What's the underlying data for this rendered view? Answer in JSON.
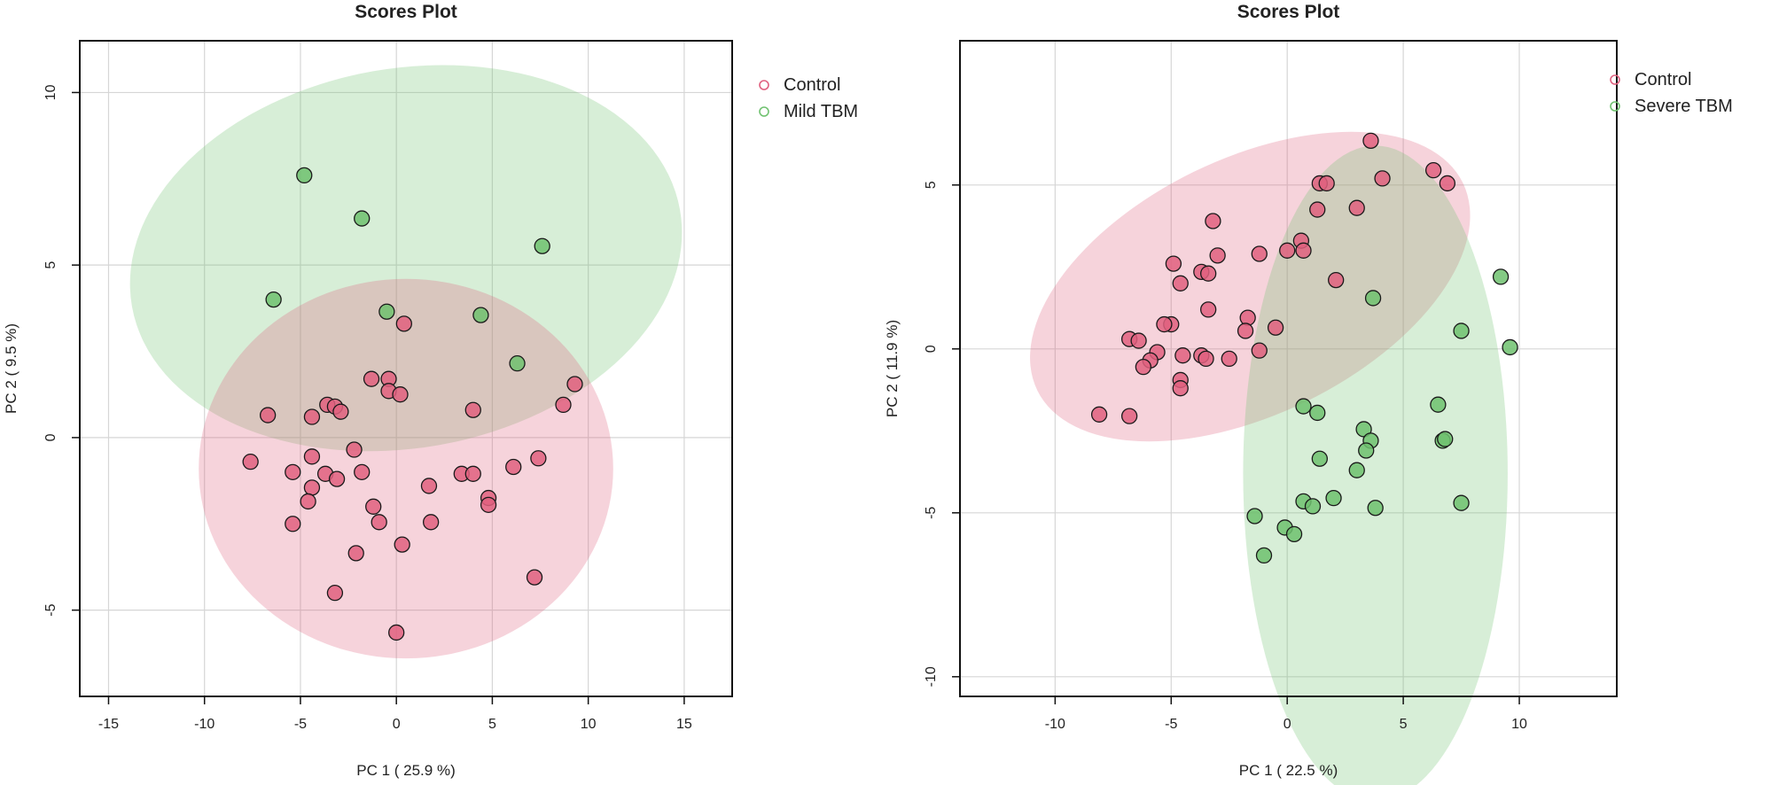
{
  "chart_data": [
    {
      "type": "scatter",
      "title": "Scores Plot",
      "xlabel": "PC 1 ( 25.9 %)",
      "ylabel": "PC 2 ( 9.5 %)",
      "xlim": [
        -16.5,
        17.5
      ],
      "ylim": [
        -7.5,
        11.5
      ],
      "xticks": [
        -15,
        -10,
        -5,
        0,
        5,
        10,
        15
      ],
      "yticks": [
        -5,
        0,
        5,
        10
      ],
      "grid": true,
      "legend_position": "right",
      "colors": {
        "Control": "#e0607f",
        "Mild TBM": "#6fc16f"
      },
      "legend": [
        {
          "name": "Control",
          "color": "#e0607f"
        },
        {
          "name": "Mild TBM",
          "color": "#6fc16f"
        }
      ],
      "ellipses": [
        {
          "group": "Mild TBM",
          "cx": 0.5,
          "cy": 5.2,
          "rx": 14.5,
          "ry": 5.5,
          "angle_deg": -10
        },
        {
          "group": "Control",
          "cx": 0.5,
          "cy": -0.9,
          "rx": 10.8,
          "ry": 5.5,
          "angle_deg": 0
        }
      ],
      "series": [
        {
          "name": "Mild TBM",
          "points": [
            [
              -4.8,
              7.6
            ],
            [
              -1.8,
              6.35
            ],
            [
              7.6,
              5.55
            ],
            [
              -6.4,
              4.0
            ],
            [
              -0.5,
              3.65
            ],
            [
              4.4,
              3.55
            ],
            [
              6.3,
              2.15
            ]
          ]
        },
        {
          "name": "Control",
          "points": [
            [
              0.4,
              3.3
            ],
            [
              9.3,
              1.55
            ],
            [
              -1.3,
              1.7
            ],
            [
              -0.4,
              1.7
            ],
            [
              -0.4,
              1.35
            ],
            [
              0.2,
              1.25
            ],
            [
              8.7,
              0.95
            ],
            [
              -3.6,
              0.95
            ],
            [
              -3.2,
              0.9
            ],
            [
              -2.9,
              0.75
            ],
            [
              4.0,
              0.8
            ],
            [
              -6.7,
              0.65
            ],
            [
              -4.4,
              0.6
            ],
            [
              -2.2,
              -0.35
            ],
            [
              -7.6,
              -0.7
            ],
            [
              -4.4,
              -0.55
            ],
            [
              7.4,
              -0.6
            ],
            [
              6.1,
              -0.85
            ],
            [
              -5.4,
              -1.0
            ],
            [
              -3.7,
              -1.05
            ],
            [
              -1.8,
              -1.0
            ],
            [
              3.4,
              -1.05
            ],
            [
              4.0,
              -1.05
            ],
            [
              -3.1,
              -1.2
            ],
            [
              1.7,
              -1.4
            ],
            [
              -4.4,
              -1.45
            ],
            [
              4.8,
              -1.75
            ],
            [
              -4.6,
              -1.85
            ],
            [
              4.8,
              -1.95
            ],
            [
              -1.2,
              -2.0
            ],
            [
              -0.9,
              -2.45
            ],
            [
              -5.4,
              -2.5
            ],
            [
              1.8,
              -2.45
            ],
            [
              0.3,
              -3.1
            ],
            [
              -2.1,
              -3.35
            ],
            [
              7.2,
              -4.05
            ],
            [
              -3.2,
              -4.5
            ],
            [
              0.0,
              -5.65
            ]
          ]
        }
      ]
    },
    {
      "type": "scatter",
      "title": "Scores Plot",
      "xlabel": "PC 1 ( 22.5 %)",
      "ylabel": "PC 2 ( 11.9 %)",
      "xlim": [
        -14.1,
        14.2
      ],
      "ylim": [
        -10.6,
        9.4
      ],
      "xticks": [
        -10,
        -5,
        0,
        5,
        10
      ],
      "yticks": [
        -10,
        -5,
        0,
        5
      ],
      "grid": true,
      "legend_position": "right",
      "colors": {
        "Control": "#e0607f",
        "Severe TBM": "#6fc16f"
      },
      "legend": [
        {
          "name": "Control",
          "color": "#e0607f"
        },
        {
          "name": "Severe TBM",
          "color": "#6fc16f"
        }
      ],
      "ellipses": [
        {
          "group": "Control",
          "cx": -1.6,
          "cy": 1.9,
          "rx": 10.2,
          "ry": 3.9,
          "angle_deg": -26
        },
        {
          "group": "Severe TBM",
          "cx": 3.8,
          "cy": -3.8,
          "rx": 5.7,
          "ry": 10.0,
          "angle_deg": 0
        }
      ],
      "series": [
        {
          "name": "Control",
          "points": [
            [
              3.6,
              6.35
            ],
            [
              6.3,
              5.45
            ],
            [
              4.1,
              5.2
            ],
            [
              6.9,
              5.05
            ],
            [
              1.4,
              5.05
            ],
            [
              1.7,
              5.05
            ],
            [
              3.0,
              4.3
            ],
            [
              1.3,
              4.25
            ],
            [
              -3.2,
              3.9
            ],
            [
              0.6,
              3.3
            ],
            [
              -3.0,
              2.85
            ],
            [
              -1.2,
              2.9
            ],
            [
              0.0,
              3.0
            ],
            [
              0.7,
              3.0
            ],
            [
              -4.9,
              2.6
            ],
            [
              -3.7,
              2.35
            ],
            [
              -3.4,
              2.3
            ],
            [
              2.1,
              2.1
            ],
            [
              -4.6,
              2.0
            ],
            [
              -3.4,
              1.2
            ],
            [
              -1.7,
              0.95
            ],
            [
              -5.0,
              0.75
            ],
            [
              -5.3,
              0.75
            ],
            [
              -0.5,
              0.65
            ],
            [
              -1.8,
              0.55
            ],
            [
              -6.8,
              0.3
            ],
            [
              -6.4,
              0.25
            ],
            [
              -1.2,
              -0.05
            ],
            [
              -5.6,
              -0.1
            ],
            [
              -3.7,
              -0.2
            ],
            [
              -4.5,
              -0.2
            ],
            [
              -2.5,
              -0.3
            ],
            [
              -3.5,
              -0.3
            ],
            [
              -5.9,
              -0.35
            ],
            [
              -6.2,
              -0.55
            ],
            [
              -4.6,
              -0.95
            ],
            [
              -4.6,
              -1.2
            ],
            [
              -8.1,
              -2.0
            ],
            [
              -6.8,
              -2.05
            ]
          ]
        },
        {
          "name": "Severe TBM",
          "points": [
            [
              9.2,
              2.2
            ],
            [
              3.7,
              1.55
            ],
            [
              7.5,
              0.55
            ],
            [
              9.6,
              0.05
            ],
            [
              0.7,
              -1.75
            ],
            [
              6.5,
              -1.7
            ],
            [
              1.3,
              -1.95
            ],
            [
              3.3,
              -2.45
            ],
            [
              3.6,
              -2.8
            ],
            [
              6.7,
              -2.8
            ],
            [
              6.8,
              -2.75
            ],
            [
              3.4,
              -3.1
            ],
            [
              1.4,
              -3.35
            ],
            [
              3.0,
              -3.7
            ],
            [
              0.7,
              -4.65
            ],
            [
              2.0,
              -4.55
            ],
            [
              1.1,
              -4.8
            ],
            [
              3.8,
              -4.85
            ],
            [
              7.5,
              -4.7
            ],
            [
              -1.4,
              -5.1
            ],
            [
              -0.1,
              -5.45
            ],
            [
              0.3,
              -5.65
            ],
            [
              -1.0,
              -6.3
            ]
          ]
        }
      ]
    }
  ]
}
